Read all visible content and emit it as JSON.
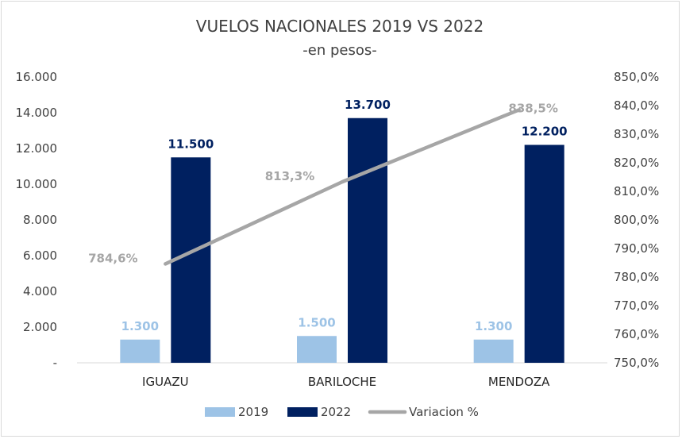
{
  "chart_data": {
    "type": "bar",
    "title": "VUELOS NACIONALES 2019 VS 2022",
    "subtitle": "-en pesos-",
    "categories": [
      "IGUAZU",
      "BARILOCHE",
      "MENDOZA"
    ],
    "series": [
      {
        "name": "2019",
        "type": "bar",
        "axis": "left",
        "values": [
          1300,
          1500,
          1300
        ],
        "labels": [
          "1.300",
          "1.500",
          "1.300"
        ],
        "color": "#9dc3e6"
      },
      {
        "name": "2022",
        "type": "bar",
        "axis": "left",
        "values": [
          11500,
          13700,
          12200
        ],
        "labels": [
          "11.500",
          "13.700",
          "12.200"
        ],
        "color": "#002060"
      },
      {
        "name": "Variacion %",
        "type": "line",
        "axis": "right",
        "values": [
          784.6,
          813.3,
          838.5
        ],
        "labels": [
          "784,6%",
          "813,3%",
          "838,5%"
        ],
        "color": "#a6a6a6"
      }
    ],
    "y_left": {
      "min": 0,
      "max": 16000,
      "step": 2000,
      "tick_labels": [
        "-",
        "2.000",
        "4.000",
        "6.000",
        "8.000",
        "10.000",
        "12.000",
        "14.000",
        "16.000"
      ]
    },
    "y_right": {
      "min": 750,
      "max": 850,
      "step": 10,
      "tick_labels": [
        "750,0%",
        "760,0%",
        "770,0%",
        "780,0%",
        "790,0%",
        "800,0%",
        "810,0%",
        "820,0%",
        "830,0%",
        "840,0%",
        "850,0%"
      ]
    },
    "grid": false,
    "legend_position": "bottom"
  }
}
